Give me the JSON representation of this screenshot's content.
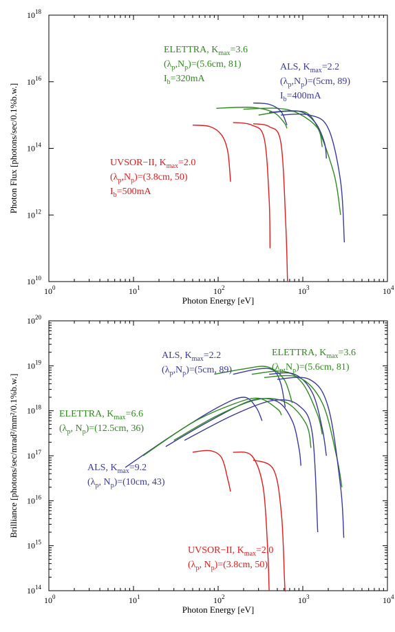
{
  "colors": {
    "red": "#e21b1b",
    "green": "#2f8a1e",
    "blue": "#39399f"
  },
  "chart_data": [
    {
      "type": "line",
      "title": "",
      "xlabel": "Photon Energy [eV]",
      "ylabel": "Photon Flux [photons/sec/0.1%b.w.]",
      "xscale": "log",
      "yscale": "log",
      "xlim": [
        1,
        10000
      ],
      "ylim": [
        10000000000.0,
        1e+18
      ],
      "xticks": [
        1,
        10,
        100,
        1000,
        10000
      ],
      "yticks": [
        10000000000.0,
        1000000000000.0,
        100000000000000.0,
        1e+16,
        1e+18
      ],
      "grid": false,
      "annotations": [
        {
          "color": "green",
          "lines": [
            [
              {
                "t": "ELETTRA, K"
              },
              {
                "t": "max",
                "sub": true
              },
              {
                "t": "=3.6"
              }
            ],
            [
              {
                "t": "(λ"
              },
              {
                "t": "p",
                "sub": true
              },
              {
                "t": ",N"
              },
              {
                "t": "p",
                "sub": true
              },
              {
                "t": ")=(5.6cm, 81)"
              }
            ],
            [
              {
                "t": "I"
              },
              {
                "t": "b",
                "sub": true
              },
              {
                "t": "=320mA"
              }
            ]
          ]
        },
        {
          "color": "blue",
          "lines": [
            [
              {
                "t": "ALS, K"
              },
              {
                "t": "max",
                "sub": true
              },
              {
                "t": "=2.2"
              }
            ],
            [
              {
                "t": "(λ"
              },
              {
                "t": "p",
                "sub": true
              },
              {
                "t": ",N"
              },
              {
                "t": "p",
                "sub": true
              },
              {
                "t": ")=(5cm, 89)"
              }
            ],
            [
              {
                "t": "I"
              },
              {
                "t": "b",
                "sub": true
              },
              {
                "t": "=400mA"
              }
            ]
          ]
        },
        {
          "color": "red",
          "lines": [
            [
              {
                "t": "UVSOR−II, K"
              },
              {
                "t": "max",
                "sub": true
              },
              {
                "t": "=2.0"
              }
            ],
            [
              {
                "t": "(λ"
              },
              {
                "t": "p",
                "sub": true
              },
              {
                "t": ",N"
              },
              {
                "t": "p",
                "sub": true
              },
              {
                "t": ")=(3.8cm, 50)"
              }
            ],
            [
              {
                "t": "I"
              },
              {
                "t": "b",
                "sub": true
              },
              {
                "t": "=500mA"
              }
            ]
          ]
        }
      ],
      "series": [
        {
          "color": "red",
          "points": [
            [
              50,
              500000000000000.0
            ],
            [
              80,
              450000000000000.0
            ],
            [
              110,
              250000000000000.0
            ],
            [
              130,
              80000000000000.0
            ],
            [
              140,
              10000000000000.0
            ]
          ]
        },
        {
          "color": "red",
          "points": [
            [
              150,
              600000000000000.0
            ],
            [
              250,
              500000000000000.0
            ],
            [
              350,
              200000000000000.0
            ],
            [
              400,
              3000000000000.0
            ],
            [
              410,
              100000000000.0
            ]
          ]
        },
        {
          "color": "red",
          "points": [
            [
              260,
              550000000000000.0
            ],
            [
              400,
              450000000000000.0
            ],
            [
              550,
              150000000000000.0
            ],
            [
              630,
              500000000000.0
            ],
            [
              660,
              10000000000.0
            ]
          ]
        },
        {
          "color": "green",
          "points": [
            [
              95,
              1600000000000000.0
            ],
            [
              250,
              1700000000000000.0
            ],
            [
              450,
              1200000000000000.0
            ],
            [
              600,
              600000000000000.0
            ],
            [
              650,
              400000000000000.0
            ]
          ]
        },
        {
          "color": "green",
          "points": [
            [
              200,
              1500000000000000.0
            ],
            [
              500,
              1600000000000000.0
            ],
            [
              900,
              1100000000000000.0
            ],
            [
              1500,
              400000000000000.0
            ],
            [
              1700,
              110000000000000.0
            ]
          ]
        },
        {
          "color": "green",
          "points": [
            [
              300,
              1000000000000000.0
            ],
            [
              700,
              1300000000000000.0
            ],
            [
              1300,
              800000000000000.0
            ],
            [
              2300,
              20000000000000.0
            ],
            [
              2800,
              1000000000000.0
            ]
          ]
        },
        {
          "color": "blue",
          "points": [
            [
              260,
              2300000000000000.0
            ],
            [
              400,
              2100000000000000.0
            ],
            [
              550,
              1300000000000000.0
            ],
            [
              650,
              500000000000000.0
            ]
          ]
        },
        {
          "color": "blue",
          "points": [
            [
              400,
              1200000000000000.0
            ],
            [
              900,
              1300000000000000.0
            ],
            [
              1400,
              600000000000000.0
            ],
            [
              1800,
              150000000000000.0
            ],
            [
              1900,
              50000000000000.0
            ]
          ]
        },
        {
          "color": "blue",
          "points": [
            [
              550,
              1000000000000000.0
            ],
            [
              1200,
              1000000000000000.0
            ],
            [
              2000,
              400000000000000.0
            ],
            [
              2800,
              10000000000000.0
            ],
            [
              3100,
              150000000000.0
            ]
          ]
        }
      ]
    },
    {
      "type": "line",
      "title": "",
      "xlabel": "Photon Energy [eV]",
      "ylabel": "Brilliance [photons/sec/mrad²/mm²/0.1%b.w.]",
      "xscale": "log",
      "yscale": "log",
      "xlim": [
        1,
        10000
      ],
      "ylim": [
        100000000000000.0,
        1e+20
      ],
      "xticks": [
        1,
        10,
        100,
        1000,
        10000
      ],
      "yticks": [
        100000000000000.0,
        1000000000000000.0,
        1e+16,
        1e+17,
        1e+18,
        1e+19,
        1e+20
      ],
      "grid": false,
      "annotations": [
        {
          "color": "blue",
          "lines": [
            [
              {
                "t": "ALS, K"
              },
              {
                "t": "max",
                "sub": true
              },
              {
                "t": "=2.2"
              }
            ],
            [
              {
                "t": "(λ"
              },
              {
                "t": "p",
                "sub": true
              },
              {
                "t": ",N"
              },
              {
                "t": "p",
                "sub": true
              },
              {
                "t": ")=(5cm, 89)"
              }
            ]
          ]
        },
        {
          "color": "green",
          "lines": [
            [
              {
                "t": "ELETTRA, K"
              },
              {
                "t": "max",
                "sub": true
              },
              {
                "t": "=3.6"
              }
            ],
            [
              {
                "t": "(λ"
              },
              {
                "t": "p",
                "sub": true
              },
              {
                "t": ",N"
              },
              {
                "t": "p",
                "sub": true
              },
              {
                "t": ")=(5.6cm, 81)"
              }
            ]
          ]
        },
        {
          "color": "green",
          "lines": [
            [
              {
                "t": "ELETTRA, K"
              },
              {
                "t": "max",
                "sub": true
              },
              {
                "t": "=6.6"
              }
            ],
            [
              {
                "t": "(λ"
              },
              {
                "t": "p",
                "sub": true
              },
              {
                "t": ", N"
              },
              {
                "t": "p",
                "sub": true
              },
              {
                "t": ")=(12.5cm, 36)"
              }
            ]
          ]
        },
        {
          "color": "blue",
          "lines": [
            [
              {
                "t": "ALS, K"
              },
              {
                "t": "max",
                "sub": true
              },
              {
                "t": "=9.2"
              }
            ],
            [
              {
                "t": "(λ"
              },
              {
                "t": "p",
                "sub": true
              },
              {
                "t": ", N"
              },
              {
                "t": "p",
                "sub": true
              },
              {
                "t": ")=(10cm, 43)"
              }
            ]
          ]
        },
        {
          "color": "red",
          "lines": [
            [
              {
                "t": "UVSOR−II, K"
              },
              {
                "t": "max",
                "sub": true
              },
              {
                "t": "=2.0"
              }
            ],
            [
              {
                "t": "(λ"
              },
              {
                "t": "p",
                "sub": true
              },
              {
                "t": ", N"
              },
              {
                "t": "p",
                "sub": true
              },
              {
                "t": ")=(3.8cm, 50)"
              }
            ]
          ]
        }
      ],
      "series": [
        {
          "color": "red",
          "points": [
            [
              50,
              1.2e+17
            ],
            [
              80,
              1.3e+17
            ],
            [
              110,
              9e+16
            ],
            [
              130,
              3e+16
            ],
            [
              140,
              1.6e+16
            ]
          ]
        },
        {
          "color": "red",
          "points": [
            [
              150,
              1.2e+17
            ],
            [
              250,
              1e+17
            ],
            [
              340,
              2e+16
            ],
            [
              385,
              800000000000000.0
            ],
            [
              400,
              100000000000000.0
            ]
          ]
        },
        {
          "color": "red",
          "points": [
            [
              260,
              8e+16
            ],
            [
              450,
              5e+16
            ],
            [
              560,
              5000000000000000.0
            ],
            [
              610,
              150000000000000.0
            ],
            [
              620,
              100000000000000.0
            ]
          ]
        },
        {
          "color": "blue",
          "points": [
            [
              8,
              5.5e+16
            ],
            [
              30,
              3e+17
            ],
            [
              100,
              1.2e+18
            ],
            [
              200,
              2e+18
            ],
            [
              280,
              1.2e+18
            ],
            [
              330,
              6e+17
            ]
          ]
        },
        {
          "color": "green",
          "points": [
            [
              13,
              1e+17
            ],
            [
              50,
              5.5e+17
            ],
            [
              150,
              1.4e+18
            ],
            [
              300,
              1.9e+18
            ],
            [
              500,
              1.1e+18
            ],
            [
              560,
              8e+17
            ]
          ]
        },
        {
          "color": "blue",
          "points": [
            [
              24,
              1.6e+17
            ],
            [
              80,
              6e+17
            ],
            [
              250,
              1.7e+18
            ],
            [
              500,
              1.6e+18
            ],
            [
              750,
              6e+17
            ],
            [
              900,
              1.5e+17
            ],
            [
              950,
              6e+16
            ]
          ]
        },
        {
          "color": "green",
          "points": [
            [
              30,
              2.2e+17
            ],
            [
              100,
              8e+17
            ],
            [
              300,
              1.8e+18
            ],
            [
              650,
              1.5e+18
            ],
            [
              1100,
              5e+17
            ],
            [
              1250,
              1.5e+17
            ]
          ]
        },
        {
          "color": "blue",
          "points": [
            [
              40,
              2.2e+17
            ],
            [
              150,
              8e+17
            ],
            [
              450,
              1.7e+18
            ],
            [
              900,
              1.3e+18
            ],
            [
              1300,
              3e+17
            ],
            [
              1500,
              2000000000000000.0
            ]
          ]
        },
        {
          "color": "green",
          "points": [
            [
              90,
              6.5e+18
            ],
            [
              200,
              8.5e+18
            ],
            [
              380,
              9.5e+18
            ],
            [
              600,
              5e+18
            ],
            [
              750,
              1.5e+18
            ]
          ]
        },
        {
          "color": "blue",
          "points": [
            [
              150,
              6.5e+18
            ],
            [
              300,
              8.5e+18
            ],
            [
              450,
              8e+18
            ],
            [
              550,
              4e+18
            ],
            [
              620,
              1.2e+18
            ]
          ]
        },
        {
          "color": "green",
          "points": [
            [
              250,
              6.5e+18
            ],
            [
              600,
              7.5e+18
            ],
            [
              1000,
              4e+18
            ],
            [
              1500,
              8e+17
            ],
            [
              1700,
              3e+17
            ]
          ]
        },
        {
          "color": "blue",
          "points": [
            [
              400,
              6.5e+18
            ],
            [
              800,
              6.5e+18
            ],
            [
              1300,
              2.5e+18
            ],
            [
              1700,
              4e+17
            ],
            [
              1900,
              1e+17
            ]
          ]
        },
        {
          "color": "green",
          "points": [
            [
              350,
              5.5e+18
            ],
            [
              900,
              5.5e+18
            ],
            [
              1700,
              1.5e+18
            ],
            [
              2500,
              1e+17
            ],
            [
              2900,
              2e+16
            ]
          ]
        },
        {
          "color": "blue",
          "points": [
            [
              500,
              5e+18
            ],
            [
              1200,
              5e+18
            ],
            [
              2000,
              1.2e+18
            ],
            [
              2800,
              2e+16
            ],
            [
              3050,
              1500000000000000.0
            ]
          ]
        }
      ]
    }
  ]
}
